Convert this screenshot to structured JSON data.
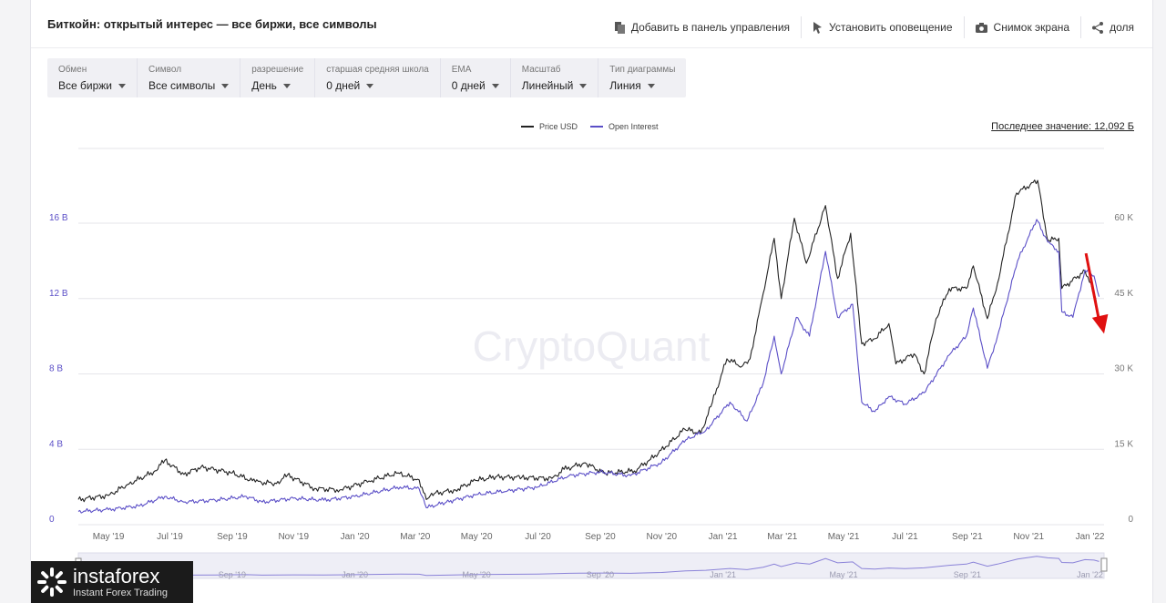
{
  "header": {
    "title": "Биткойн: открытый интерес — все биржи, все символы",
    "actions": [
      {
        "label": "Добавить в панель управления",
        "icon": "dashboard-icon"
      },
      {
        "label": "Установить оповещение",
        "icon": "bell-icon"
      },
      {
        "label": "Снимок экрана",
        "icon": "camera-icon"
      },
      {
        "label": "доля",
        "icon": "share-icon"
      }
    ]
  },
  "controls": [
    {
      "label": "Обмен",
      "value": "Все биржи"
    },
    {
      "label": "Символ",
      "value": "Все символы"
    },
    {
      "label": "разрешение",
      "value": "День"
    },
    {
      "label": "старшая средняя школа",
      "value": "0 дней"
    },
    {
      "label": "EMA",
      "value": "0 дней"
    },
    {
      "label": "Масштаб",
      "value": "Линейный"
    },
    {
      "label": "Тип диаграммы",
      "value": "Линия"
    }
  ],
  "last_value": "Последнее значение: 12,092 Б",
  "watermark": "CryptoQuant",
  "logo": {
    "brand": "instaforex",
    "tagline": "Instant Forex Trading"
  },
  "colors": {
    "price": "#222222",
    "open_interest": "#5b4fc7",
    "grid": "#e6e6ea",
    "arrow": "#e01010"
  },
  "chart_data": {
    "type": "line",
    "legend": [
      "Price USD",
      "Open Interest"
    ],
    "legend_position": "top-center",
    "grid": true,
    "x_ticks": [
      "May '19",
      "Jul '19",
      "Sep '19",
      "Nov '19",
      "Jan '20",
      "Mar '20",
      "May '20",
      "Jul '20",
      "Sep '20",
      "Nov '20",
      "Jan '21",
      "Mar '21",
      "May '21",
      "Jul '21",
      "Sep '21",
      "Nov '21",
      "Jan '22"
    ],
    "navigator_ticks": [
      "Sep '19",
      "Jan '20",
      "May '20",
      "Sep '20",
      "Jan '21",
      "May '21",
      "Sep '21",
      "Jan '22"
    ],
    "y_left_ticks": [
      "0",
      "4 B",
      "8 B",
      "12 B",
      "16 B"
    ],
    "y_left_range": [
      0,
      16
    ],
    "y_right_ticks": [
      "0",
      "15 K",
      "30 K",
      "45 K",
      "60 K"
    ],
    "y_right_range": [
      0,
      60000
    ],
    "x_range": [
      "2019-04-01",
      "2022-01-15"
    ],
    "series": [
      {
        "name": "Price USD",
        "axis": "right",
        "points": [
          [
            "2019-04-01",
            5000
          ],
          [
            "2019-05-01",
            5800
          ],
          [
            "2019-05-20",
            8000
          ],
          [
            "2019-06-15",
            10500
          ],
          [
            "2019-06-26",
            12800
          ],
          [
            "2019-07-15",
            10000
          ],
          [
            "2019-08-01",
            11500
          ],
          [
            "2019-09-01",
            10300
          ],
          [
            "2019-09-24",
            8500
          ],
          [
            "2019-10-15",
            8200
          ],
          [
            "2019-10-26",
            9900
          ],
          [
            "2019-11-22",
            7200
          ],
          [
            "2019-12-17",
            6900
          ],
          [
            "2020-01-15",
            8700
          ],
          [
            "2020-02-13",
            10300
          ],
          [
            "2020-03-05",
            8900
          ],
          [
            "2020-03-12",
            5000
          ],
          [
            "2020-03-20",
            6200
          ],
          [
            "2020-04-10",
            6900
          ],
          [
            "2020-04-30",
            8800
          ],
          [
            "2020-05-20",
            9500
          ],
          [
            "2020-06-15",
            9400
          ],
          [
            "2020-07-15",
            9200
          ],
          [
            "2020-07-27",
            11000
          ],
          [
            "2020-08-17",
            12300
          ],
          [
            "2020-09-05",
            10200
          ],
          [
            "2020-10-05",
            10700
          ],
          [
            "2020-10-21",
            13000
          ],
          [
            "2020-11-05",
            15500
          ],
          [
            "2020-11-24",
            19000
          ],
          [
            "2020-12-10",
            18200
          ],
          [
            "2020-12-20",
            23500
          ],
          [
            "2021-01-05",
            33000
          ],
          [
            "2021-01-20",
            31500
          ],
          [
            "2021-01-28",
            33000
          ],
          [
            "2021-02-10",
            46000
          ],
          [
            "2021-02-21",
            57000
          ],
          [
            "2021-02-28",
            45000
          ],
          [
            "2021-03-13",
            61000
          ],
          [
            "2021-03-25",
            52000
          ],
          [
            "2021-04-13",
            63500
          ],
          [
            "2021-04-25",
            49000
          ],
          [
            "2021-05-08",
            58000
          ],
          [
            "2021-05-19",
            36000
          ],
          [
            "2021-06-01",
            37000
          ],
          [
            "2021-06-15",
            40000
          ],
          [
            "2021-06-22",
            32000
          ],
          [
            "2021-07-10",
            34000
          ],
          [
            "2021-07-20",
            30000
          ],
          [
            "2021-08-01",
            41000
          ],
          [
            "2021-08-14",
            47000
          ],
          [
            "2021-08-31",
            47000
          ],
          [
            "2021-09-07",
            51500
          ],
          [
            "2021-09-21",
            41000
          ],
          [
            "2021-10-01",
            48000
          ],
          [
            "2021-10-20",
            66000
          ],
          [
            "2021-11-10",
            68500
          ],
          [
            "2021-11-20",
            56500
          ],
          [
            "2021-12-01",
            57000
          ],
          [
            "2021-12-04",
            47000
          ],
          [
            "2021-12-27",
            50500
          ],
          [
            "2022-01-05",
            46000
          ],
          [
            "2022-01-10",
            41500
          ]
        ]
      },
      {
        "name": "Open Interest",
        "axis": "left",
        "points": [
          [
            "2019-04-01",
            0.7
          ],
          [
            "2019-05-01",
            0.8
          ],
          [
            "2019-06-01",
            1.0
          ],
          [
            "2019-06-26",
            1.5
          ],
          [
            "2019-07-15",
            1.2
          ],
          [
            "2019-08-15",
            1.3
          ],
          [
            "2019-09-15",
            1.5
          ],
          [
            "2019-10-01",
            1.2
          ],
          [
            "2019-11-01",
            1.4
          ],
          [
            "2019-12-01",
            1.3
          ],
          [
            "2020-01-01",
            1.5
          ],
          [
            "2020-02-15",
            2.0
          ],
          [
            "2020-03-05",
            1.9
          ],
          [
            "2020-03-12",
            0.9
          ],
          [
            "2020-04-01",
            1.2
          ],
          [
            "2020-05-01",
            1.6
          ],
          [
            "2020-06-01",
            1.8
          ],
          [
            "2020-07-01",
            2.0
          ],
          [
            "2020-08-01",
            2.6
          ],
          [
            "2020-09-01",
            2.8
          ],
          [
            "2020-10-01",
            2.6
          ],
          [
            "2020-11-01",
            3.3
          ],
          [
            "2020-11-25",
            4.5
          ],
          [
            "2020-12-15",
            5.0
          ],
          [
            "2021-01-08",
            6.5
          ],
          [
            "2021-01-25",
            5.5
          ],
          [
            "2021-02-10",
            7.5
          ],
          [
            "2021-02-21",
            10.0
          ],
          [
            "2021-02-28",
            8.0
          ],
          [
            "2021-03-15",
            11.0
          ],
          [
            "2021-03-28",
            10.0
          ],
          [
            "2021-04-13",
            14.5
          ],
          [
            "2021-04-25",
            11.0
          ],
          [
            "2021-05-10",
            11.7
          ],
          [
            "2021-05-19",
            6.5
          ],
          [
            "2021-06-01",
            6.0
          ],
          [
            "2021-06-15",
            6.8
          ],
          [
            "2021-07-01",
            6.4
          ],
          [
            "2021-07-20",
            7.0
          ],
          [
            "2021-08-14",
            9.0
          ],
          [
            "2021-08-31",
            10.0
          ],
          [
            "2021-09-07",
            11.5
          ],
          [
            "2021-09-21",
            8.3
          ],
          [
            "2021-10-01",
            10.0
          ],
          [
            "2021-10-21",
            14.0
          ],
          [
            "2021-11-09",
            16.2
          ],
          [
            "2021-11-20",
            15.0
          ],
          [
            "2021-12-01",
            14.5
          ],
          [
            "2021-12-04",
            11.3
          ],
          [
            "2021-12-15",
            11.0
          ],
          [
            "2021-12-27",
            13.5
          ],
          [
            "2022-01-05",
            13.2
          ],
          [
            "2022-01-10",
            12.1
          ]
        ]
      }
    ],
    "annotations": [
      {
        "type": "arrow",
        "color": "red",
        "from": [
          "2021-12-28",
          54000
        ],
        "to": [
          "2022-01-15",
          38000
        ]
      }
    ]
  }
}
